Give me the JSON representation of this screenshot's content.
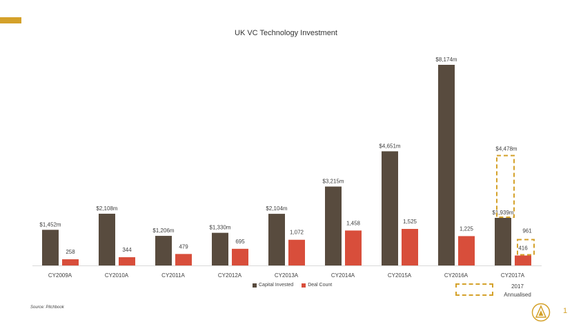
{
  "title": "UK VC Technology Investment",
  "chart_data": {
    "type": "bar",
    "title": "UK VC Technology Investment",
    "categories": [
      "CY2009A",
      "CY2010A",
      "CY2011A",
      "CY2012A",
      "CY2013A",
      "CY2014A",
      "CY2015A",
      "CY2016A",
      "CY2017A"
    ],
    "series": [
      {
        "name": "Capital Invested",
        "color": "#584B3E",
        "values": [
          1452,
          2108,
          1206,
          1330,
          2104,
          3215,
          4651,
          8174,
          1939
        ],
        "labels": [
          "$1,452m",
          "$2,108m",
          "$1,206m",
          "$1,330m",
          "$2,104m",
          "$3,215m",
          "$4,651m",
          "$8,174m",
          "$1,939m"
        ]
      },
      {
        "name": "Deal Count",
        "color": "#D84E3B",
        "values": [
          258,
          344,
          479,
          695,
          1072,
          1458,
          1525,
          1225,
          416
        ],
        "labels": [
          "258",
          "344",
          "479",
          "695",
          "1,072",
          "1,458",
          "1,525",
          "1,225",
          "416"
        ]
      }
    ],
    "annualised": {
      "category": "CY2017A",
      "capital_invested": 4478,
      "capital_invested_label": "$4,478m",
      "deal_count": 961,
      "deal_count_label": "961",
      "outline_color": "#D4A12A"
    },
    "legend_position": "bottom",
    "grid": false
  },
  "legend": {
    "capital_invested": "Capital Invested",
    "deal_count": "Deal Count",
    "annualised_line1": "2017",
    "annualised_line2": "Annualised"
  },
  "footer": {
    "source": "Source: Pitchbook",
    "page_number": "1"
  },
  "colors": {
    "accent": "#D4A12A",
    "capital": "#584B3E",
    "deal": "#D84E3B"
  }
}
